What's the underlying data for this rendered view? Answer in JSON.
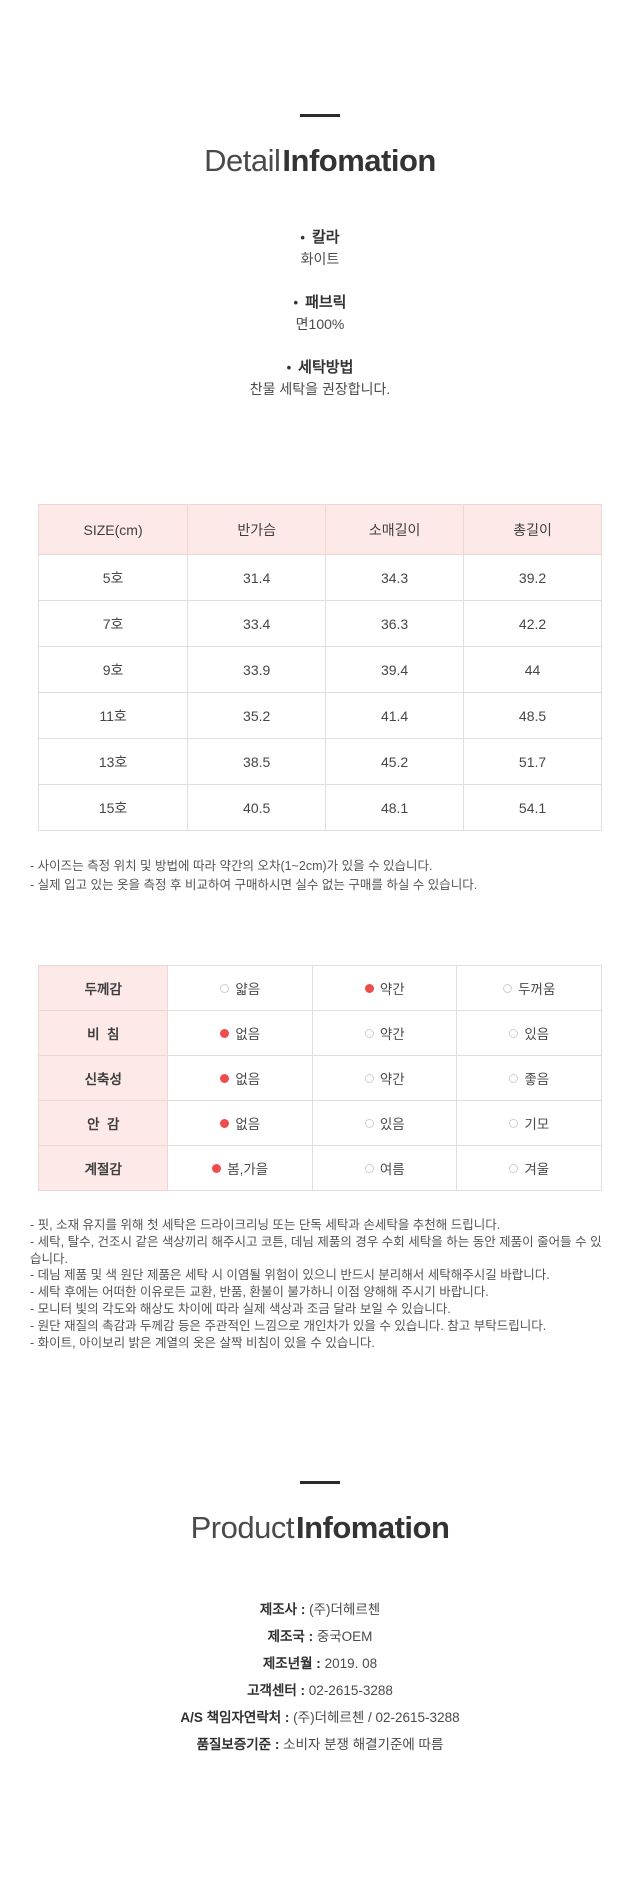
{
  "icons": {
    "bullet": "•"
  },
  "colors": {
    "accent_red": "#f04c4c",
    "header_pink": "#fdeae8",
    "rule_dark": "#2b2b2b",
    "border_gray": "#e2dedd"
  },
  "detail_section": {
    "title_light": "Detail",
    "title_bold": "Infomation",
    "items": [
      {
        "label": "칼라",
        "value": "화이트"
      },
      {
        "label": "패브릭",
        "value": "면100%"
      },
      {
        "label": "세탁방법",
        "value": "찬물 세탁을 권장합니다."
      }
    ]
  },
  "size_table": {
    "headers": [
      "SIZE(cm)",
      "반가슴",
      "소매길이",
      "총길이"
    ],
    "rows": [
      [
        "5호",
        "31.4",
        "34.3",
        "39.2"
      ],
      [
        "7호",
        "33.4",
        "36.3",
        "42.2"
      ],
      [
        "9호",
        "33.9",
        "39.4",
        "44"
      ],
      [
        "11호",
        "35.2",
        "41.4",
        "48.5"
      ],
      [
        "13호",
        "38.5",
        "45.2",
        "51.7"
      ],
      [
        "15호",
        "40.5",
        "48.1",
        "54.1"
      ]
    ],
    "notes": [
      "- 사이즈는 측정 위치 및 방법에 따라 약간의 오차(1~2cm)가 있을 수 있습니다.",
      "- 실제 입고 있는 옷을 측정 후 비교하여 구매하시면 실수 없는 구매를 하실 수 있습니다."
    ]
  },
  "attribute_table": {
    "rows": [
      {
        "label": "두께감",
        "options": [
          {
            "text": "얇음",
            "selected": false
          },
          {
            "text": "약간",
            "selected": true
          },
          {
            "text": "두꺼움",
            "selected": false
          }
        ]
      },
      {
        "label": "비  침",
        "options": [
          {
            "text": "없음",
            "selected": true
          },
          {
            "text": "약간",
            "selected": false
          },
          {
            "text": "있음",
            "selected": false
          }
        ]
      },
      {
        "label": "신축성",
        "options": [
          {
            "text": "없음",
            "selected": true
          },
          {
            "text": "약간",
            "selected": false
          },
          {
            "text": "좋음",
            "selected": false
          }
        ]
      },
      {
        "label": "안  감",
        "options": [
          {
            "text": "없음",
            "selected": true
          },
          {
            "text": "있음",
            "selected": false
          },
          {
            "text": "기모",
            "selected": false
          }
        ]
      },
      {
        "label": "계절감",
        "options": [
          {
            "text": "봄,가을",
            "selected": true
          },
          {
            "text": "여름",
            "selected": false
          },
          {
            "text": "겨울",
            "selected": false
          }
        ]
      }
    ]
  },
  "care_notes": [
    "- 핏, 소재 유지를 위해 첫 세탁은 드라이크리닝 또는 단독 세탁과 손세탁을 추천해 드립니다.",
    "- 세탁, 탈수, 건조시 같은 색상끼리 해주시고 코튼, 데님 제품의 경우 수회 세탁을 하는 동안 제품이 줄어들 수 있습니다.",
    "- 데님 제품 및 색 원단 제품은 세탁 시 이염될 위험이 있으니 반드시 분리해서 세탁해주시길 바랍니다.",
    "- 세탁 후에는 어떠한 이유로든 교환, 반품, 환불이 불가하니 이점 양해해 주시기 바랍니다.",
    "- 모니터 빛의 각도와 해상도 차이에 따라 실제 색상과 조금 달라 보일 수 있습니다.",
    "- 원단 재질의 촉감과 두께감 등은 주관적인 느낌으로 개인차가 있을 수 있습니다. 참고 부탁드립니다.",
    "- 화이트, 아이보리 밝은 계열의 옷은 살짝 비침이 있을 수 있습니다."
  ],
  "product_section": {
    "title_light": "Product",
    "title_bold": "Infomation",
    "fields": [
      {
        "label": "제조사",
        "value": "(주)더헤르첸"
      },
      {
        "label": "제조국",
        "value": "중국OEM"
      },
      {
        "label": "제조년월",
        "value": "2019. 08"
      },
      {
        "label": "고객센터",
        "value": "02-2615-3288"
      },
      {
        "label": "A/S 책임자연락처",
        "value": "(주)더헤르첸 / 02-2615-3288"
      },
      {
        "label": "품질보증기준",
        "value": "소비자 분쟁 해결기준에 따름"
      }
    ]
  }
}
